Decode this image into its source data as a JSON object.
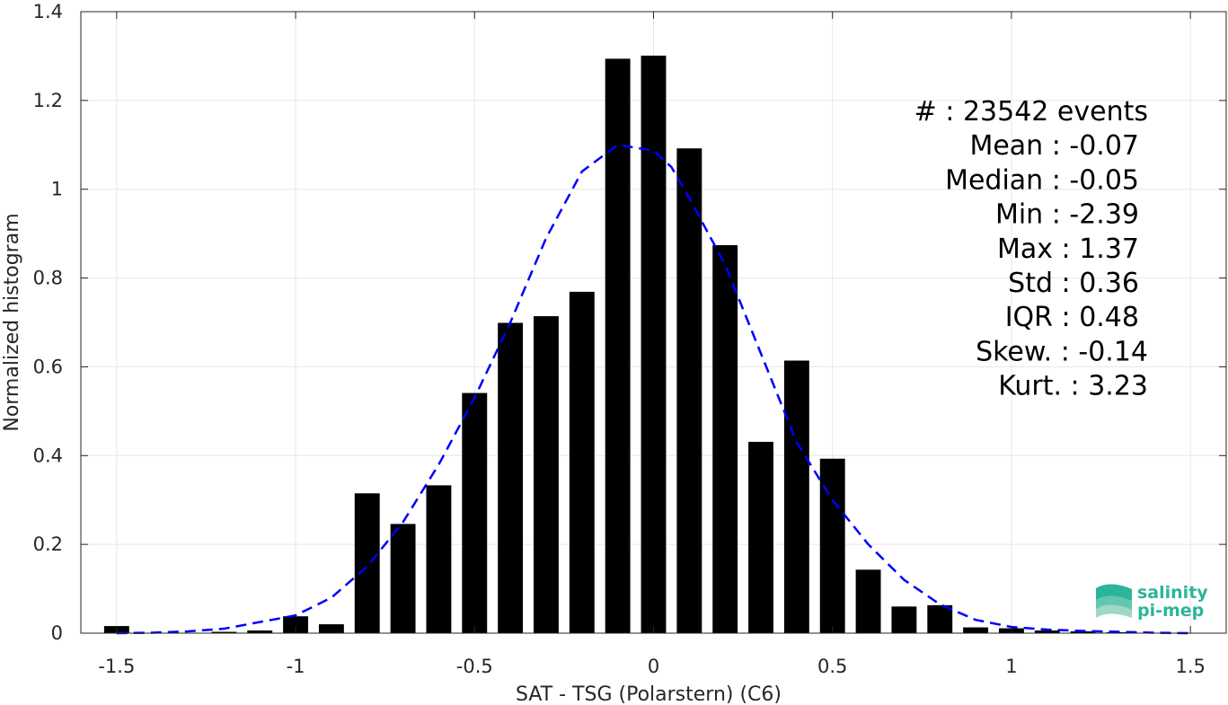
{
  "chart_data": {
    "type": "bar",
    "xlabel": "SAT - TSG (Polarstern) (C6)",
    "ylabel": "Normalized histogram",
    "xlim": [
      -1.6,
      1.6
    ],
    "ylim": [
      0,
      1.4
    ],
    "xticks": [
      -1.5,
      -1,
      -0.5,
      0,
      0.5,
      1,
      1.5
    ],
    "xtick_labels": [
      "-1.5",
      "-1",
      "-0.5",
      "0",
      "0.5",
      "1",
      "1.5"
    ],
    "yticks": [
      0,
      0.2,
      0.4,
      0.6,
      0.8,
      1,
      1.2,
      1.4
    ],
    "ytick_labels": [
      "0",
      "0.2",
      "0.4",
      "0.6",
      "0.8",
      "1",
      "1.2",
      "1.4"
    ],
    "grid": true,
    "bar_color": "#000000",
    "bar_width": 0.07,
    "bars": {
      "x": [
        -1.5,
        -1.4,
        -1.3,
        -1.2,
        -1.1,
        -1.0,
        -0.9,
        -0.8,
        -0.7,
        -0.6,
        -0.5,
        -0.4,
        -0.3,
        -0.2,
        -0.1,
        0.0,
        0.1,
        0.2,
        0.3,
        0.4,
        0.5,
        0.6,
        0.7,
        0.8,
        0.9,
        1.0,
        1.1,
        1.2,
        1.3,
        1.4
      ],
      "values": [
        0.016,
        0.0,
        0.0,
        0.003,
        0.006,
        0.038,
        0.02,
        0.315,
        0.246,
        0.333,
        0.541,
        0.699,
        0.714,
        0.769,
        1.294,
        1.301,
        1.092,
        0.874,
        0.431,
        0.614,
        0.393,
        0.143,
        0.06,
        0.063,
        0.013,
        0.011,
        0.006,
        0.004,
        0.002,
        0.001
      ]
    },
    "fit_curve": {
      "color": "#0000ff",
      "style": "dashed",
      "x": [
        -1.5,
        -1.4,
        -1.3,
        -1.2,
        -1.1,
        -1.0,
        -0.9,
        -0.8,
        -0.7,
        -0.6,
        -0.5,
        -0.4,
        -0.3,
        -0.2,
        -0.1,
        0.0,
        0.05,
        0.1,
        0.2,
        0.3,
        0.4,
        0.5,
        0.6,
        0.7,
        0.8,
        0.9,
        1.0,
        1.1,
        1.2,
        1.3,
        1.4,
        1.5
      ],
      "y": [
        0.0,
        0.001,
        0.004,
        0.01,
        0.025,
        0.04,
        0.08,
        0.15,
        0.25,
        0.38,
        0.53,
        0.7,
        0.89,
        1.04,
        1.1,
        1.087,
        1.05,
        0.98,
        0.83,
        0.63,
        0.43,
        0.3,
        0.2,
        0.12,
        0.065,
        0.03,
        0.014,
        0.008,
        0.005,
        0.003,
        0.001,
        0.0
      ]
    },
    "stats": [
      "#  : 23542 events",
      "Mean : -0.07",
      "Median : -0.05",
      "Min : -2.39",
      "Max : 1.37",
      "Std : 0.36",
      "IQR : 0.48",
      "Skew. : -0.14",
      "Kurt. : 3.23"
    ]
  },
  "logo": {
    "line1": "salinity",
    "line2": "pi-mep",
    "color": "#2bb59a"
  }
}
